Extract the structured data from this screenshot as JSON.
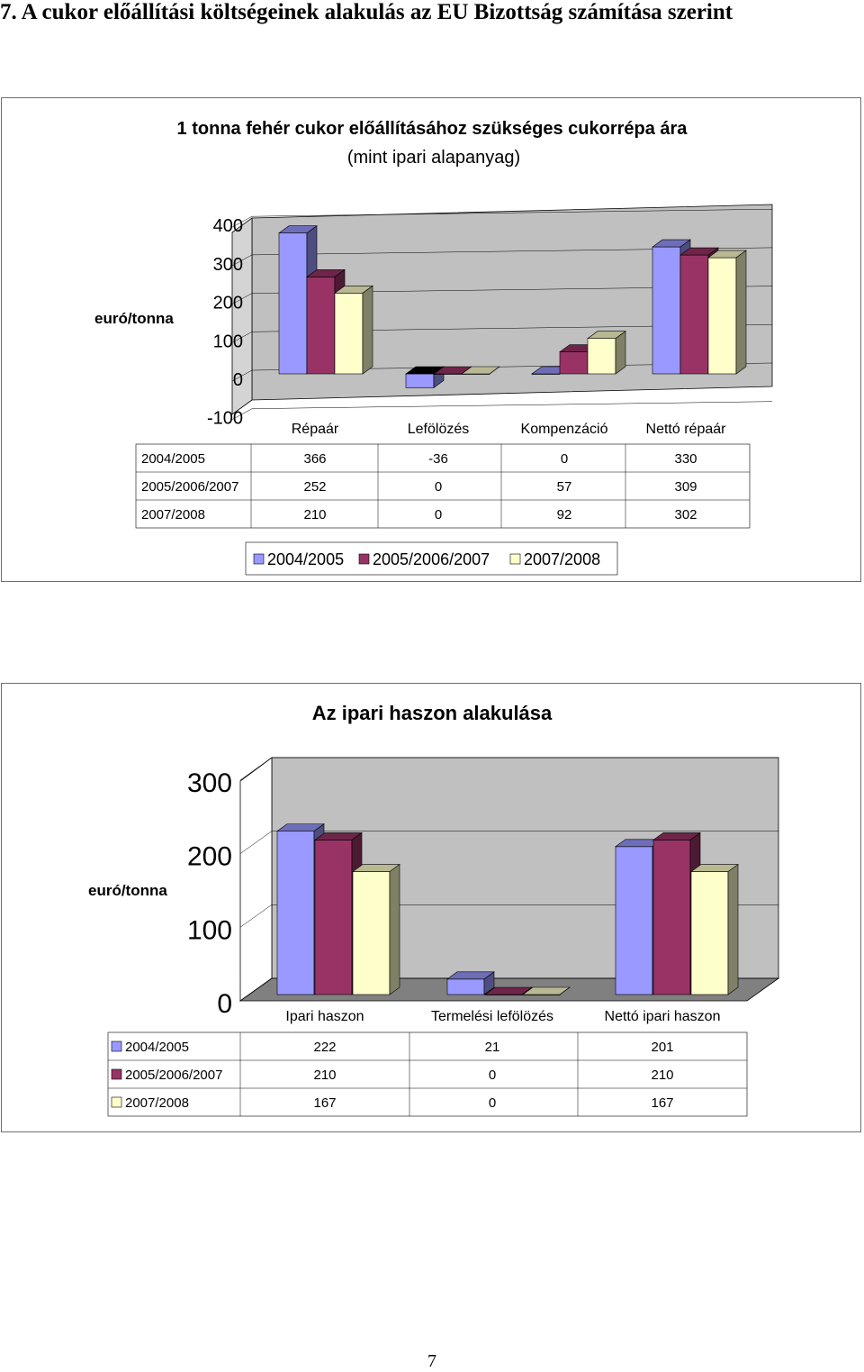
{
  "heading": "7.  A cukor előállítási költségeinek alakulás az EU Bizottság számítása szerint",
  "page_number": "7",
  "colors": {
    "series": [
      "#9999ff",
      "#993366",
      "#ffffcc"
    ],
    "plot_back": "#c0c0c0",
    "floor": "#808080"
  },
  "chart_data": [
    {
      "type": "bar",
      "title": "1 tonna fehér cukor előállításához szükséges cukorrépa ára",
      "subtitle": "(mint ipari alapanyag)",
      "ylabel": "euró/tonna",
      "ylim": [
        -100,
        400
      ],
      "yticks": [
        "400",
        "300",
        "200",
        "100",
        "0",
        "-100"
      ],
      "categories": [
        "Répaár",
        "Lefölözés",
        "Kompenzáció",
        "Nettó répaár"
      ],
      "series": [
        {
          "name": "2004/2005",
          "values": [
            366,
            -36,
            0,
            330
          ],
          "labels": [
            "366",
            "-36",
            "0",
            "330"
          ]
        },
        {
          "name": "2005/2006/2007",
          "values": [
            252,
            0,
            57,
            309
          ],
          "labels": [
            "252",
            "0",
            "57",
            "309"
          ]
        },
        {
          "name": "2007/2008",
          "values": [
            210,
            0,
            92,
            302
          ],
          "labels": [
            "210",
            "0",
            "92",
            "302"
          ]
        }
      ],
      "legend": "bottom",
      "data_table": true,
      "grid": true
    },
    {
      "type": "bar",
      "title": "Az ipari haszon alakulása",
      "ylabel": "euró/tonna",
      "ylim": [
        0,
        300
      ],
      "yticks": [
        "300",
        "200",
        "100",
        "0"
      ],
      "categories": [
        "Ipari haszon",
        "Termelési lefölözés",
        "Nettó ipari haszon"
      ],
      "series": [
        {
          "name": "2004/2005",
          "values": [
            222,
            21,
            201
          ],
          "labels": [
            "222",
            "21",
            "201"
          ]
        },
        {
          "name": "2005/2006/2007",
          "values": [
            210,
            0,
            210
          ],
          "labels": [
            "210",
            "0",
            "210"
          ]
        },
        {
          "name": "2007/2008",
          "values": [
            167,
            0,
            167
          ],
          "labels": [
            "167",
            "0",
            "167"
          ]
        }
      ],
      "legend": "table",
      "data_table": true,
      "grid": true
    }
  ]
}
